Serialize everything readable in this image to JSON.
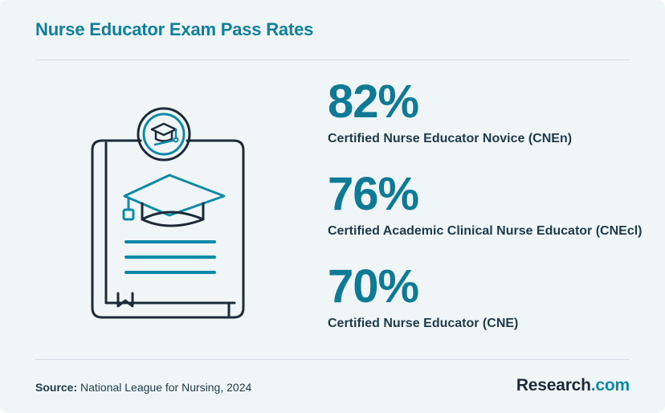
{
  "title": "Nurse Educator Exam Pass Rates",
  "chart_data": {
    "type": "table",
    "title": "Nurse Educator Exam Pass Rates",
    "categories": [
      "Certified Nurse Educator Novice (CNEn)",
      "Certified Academic Clinical Nurse Educator (CNEcl)",
      "Certified Nurse Educator (CNE)"
    ],
    "values": [
      82,
      76,
      70
    ],
    "value_labels": [
      "82%",
      "76%",
      "70%"
    ],
    "unit": "%"
  },
  "illustration": {
    "icon": "certification-book-icon",
    "accent_color": "#0f8aa6",
    "outline_color": "#1d2b38"
  },
  "footer": {
    "source_label": "Source:",
    "source_text": "National League for Nursing, 2024",
    "brand_name": "Research",
    "brand_suffix": ".com"
  },
  "colors": {
    "background": "#f0f5f8",
    "title": "#0f7f9b",
    "value": "#0f7a96",
    "label": "#1f3a48"
  }
}
